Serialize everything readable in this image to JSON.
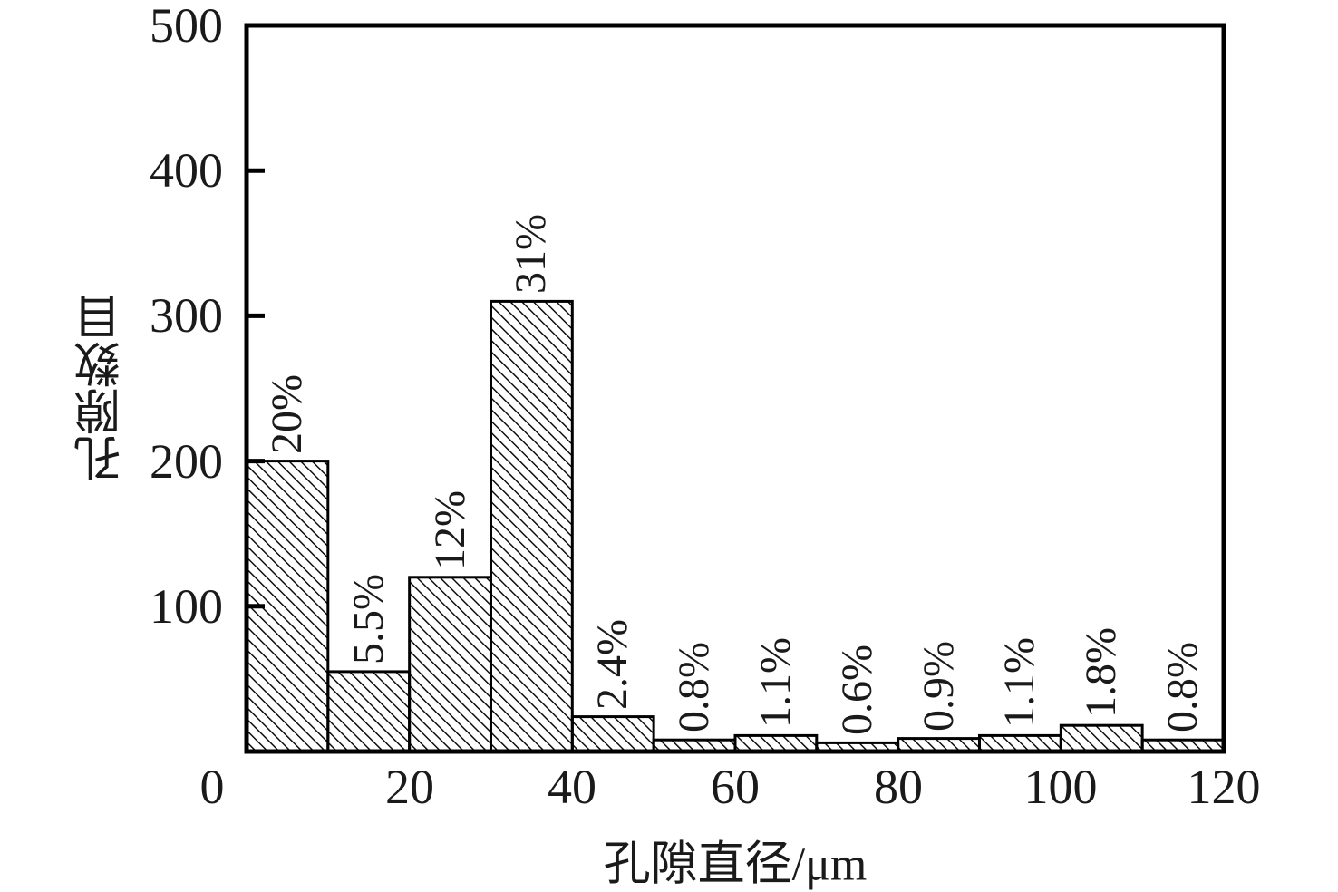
{
  "chart_data": {
    "type": "bar",
    "title": "",
    "xlabel": "孔隙直径/μm",
    "ylabel": "孔隙数目",
    "xlim": [
      0,
      120
    ],
    "ylim": [
      0,
      500
    ],
    "x_ticks": [
      0,
      20,
      40,
      60,
      80,
      100,
      120
    ],
    "y_ticks": [
      100,
      200,
      300,
      400,
      500
    ],
    "grid": false,
    "legend": false,
    "bar_style": {
      "fill": "#ffffff",
      "hatch": "diagonal-backslash",
      "line_color": "#000000",
      "background": "#ffffff"
    },
    "bins": [
      {
        "range_um": [
          0,
          10
        ],
        "count": 200,
        "label": "20%"
      },
      {
        "range_um": [
          10,
          20
        ],
        "count": 55,
        "label": "5.5%"
      },
      {
        "range_um": [
          20,
          30
        ],
        "count": 120,
        "label": "12%"
      },
      {
        "range_um": [
          30,
          40
        ],
        "count": 310,
        "label": "31%"
      },
      {
        "range_um": [
          40,
          50
        ],
        "count": 24,
        "label": "2.4%"
      },
      {
        "range_um": [
          50,
          60
        ],
        "count": 8,
        "label": "0.8%"
      },
      {
        "range_um": [
          60,
          70
        ],
        "count": 11,
        "label": "1.1%"
      },
      {
        "range_um": [
          70,
          80
        ],
        "count": 6,
        "label": "0.6%"
      },
      {
        "range_um": [
          80,
          90
        ],
        "count": 9,
        "label": "0.9%"
      },
      {
        "range_um": [
          90,
          100
        ],
        "count": 11,
        "label": "1.1%"
      },
      {
        "range_um": [
          100,
          110
        ],
        "count": 18,
        "label": "1.8%"
      },
      {
        "range_um": [
          110,
          120
        ],
        "count": 8,
        "label": "0.8%"
      }
    ]
  }
}
